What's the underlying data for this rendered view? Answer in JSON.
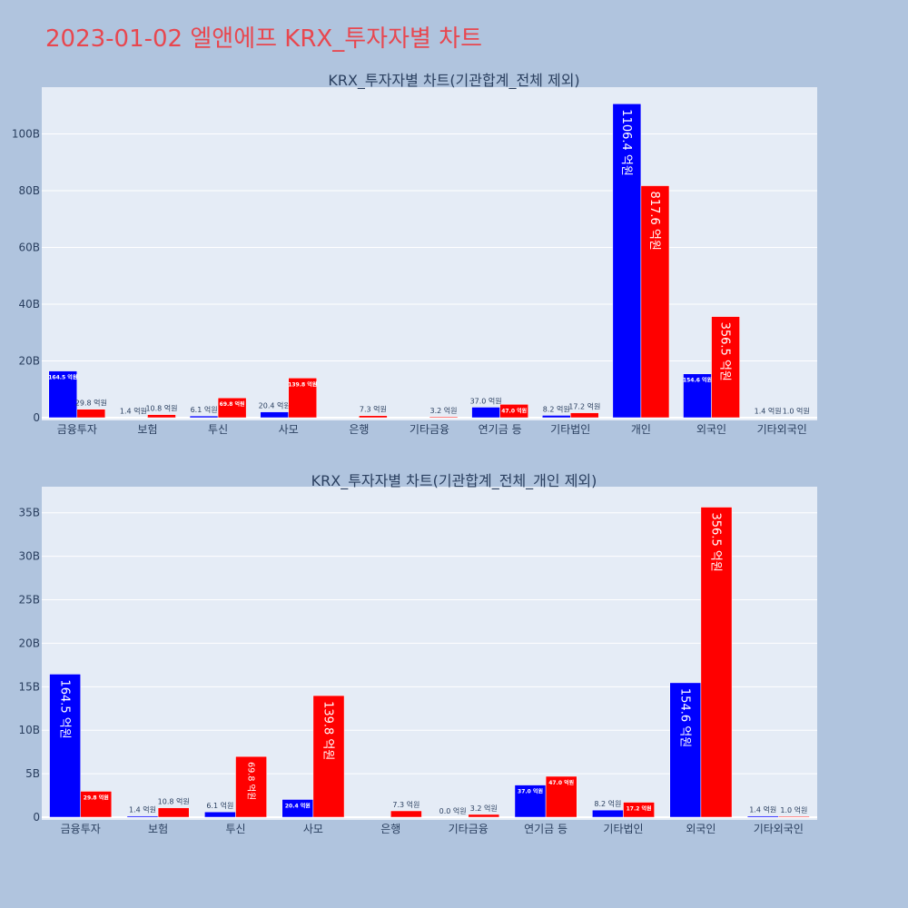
{
  "page": {
    "title": "2023-01-02 엘앤에프 KRX_투자자별 차트",
    "background": "#b0c4de",
    "plot_background": "#e5ecf6",
    "buy_color": "#0000ff",
    "sell_color": "#ff0000",
    "title_color": "#e8474f"
  },
  "chart_data": [
    {
      "type": "bar",
      "title": "KRX_투자자별 차트(기관합계_전체 제외)",
      "categories": [
        "금융투자",
        "보험",
        "투신",
        "사모",
        "은행",
        "기타금융",
        "연기금 등",
        "기타법인",
        "개인",
        "외국인",
        "기타외국인"
      ],
      "series": [
        {
          "values": [
            16.45,
            0.14,
            0.61,
            2.04,
            0.0,
            0.0,
            3.7,
            0.82,
            110.64,
            15.46,
            0.14
          ],
          "labels": [
            "164.5 억원",
            "1.4 억원",
            "6.1 억원",
            "20.4 억원",
            "",
            "",
            "37.0 억원",
            "8.2 억원",
            "1106.4 억원",
            "154.6 억원",
            "1.4 억원"
          ]
        },
        {
          "values": [
            2.98,
            1.08,
            6.98,
            13.98,
            0.73,
            0.32,
            4.7,
            1.72,
            81.76,
            35.65,
            0.1
          ],
          "labels": [
            "29.8 억원",
            "10.8 억원",
            "69.8 억원",
            "139.8 억원",
            "7.3 억원",
            "3.2 억원",
            "47.0 억원",
            "17.2 억원",
            "817.6 억원",
            "356.5 억원",
            "1.0 억원"
          ]
        }
      ],
      "y_unit": "B",
      "ylim": [
        0,
        116.5
      ],
      "yticks": [
        0,
        20,
        40,
        60,
        80,
        100
      ],
      "grid": true,
      "legend": "none"
    },
    {
      "type": "bar",
      "title": "KRX_투자자별 차트(기관합계_전체_개인 제외)",
      "categories": [
        "금융투자",
        "보험",
        "투신",
        "사모",
        "은행",
        "기타금융",
        "연기금 등",
        "기타법인",
        "외국인",
        "기타외국인"
      ],
      "series": [
        {
          "values": [
            16.45,
            0.14,
            0.61,
            2.04,
            0.0,
            0.0,
            3.7,
            0.82,
            15.46,
            0.14
          ],
          "labels": [
            "164.5 억원",
            "1.4 억원",
            "6.1 억원",
            "20.4 억원",
            "",
            "0.0 억원",
            "37.0 억원",
            "8.2 억원",
            "154.6 억원",
            "1.4 억원"
          ]
        },
        {
          "values": [
            2.98,
            1.08,
            6.98,
            13.98,
            0.73,
            0.32,
            4.7,
            1.72,
            35.65,
            0.1
          ],
          "labels": [
            "29.8 억원",
            "10.8 억원",
            "69.8 억원",
            "139.8 억원",
            "7.3 억원",
            "3.2 억원",
            "47.0 억원",
            "17.2 억원",
            "356.5 억원",
            "1.0 억원"
          ]
        }
      ],
      "y_unit": "B",
      "ylim": [
        0,
        38
      ],
      "yticks": [
        0,
        5,
        10,
        15,
        20,
        25,
        30,
        35
      ],
      "grid": true,
      "legend": "none"
    }
  ]
}
